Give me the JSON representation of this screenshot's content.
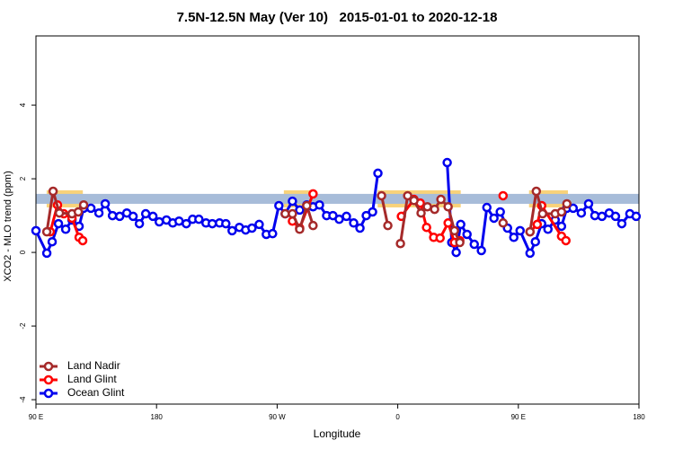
{
  "chart_data": {
    "type": "line",
    "title": "7.5N-12.5N May (Ver 10)   2015-01-01 to 2020-12-18",
    "x_label": "Longitude",
    "y_label": "XCO2 - MLO trend (ppm)",
    "xlim": [
      90,
      540
    ],
    "ylim": [
      -4.12,
      5.88
    ],
    "xticks": [
      {
        "value": 90,
        "label": "90 E"
      },
      {
        "value": 180,
        "label": "180"
      },
      {
        "value": 270,
        "label": "90 W"
      },
      {
        "value": 360,
        "label": "0"
      },
      {
        "value": 450,
        "label": "90 E"
      },
      {
        "value": 540,
        "label": "180"
      }
    ],
    "yticks": [
      -4,
      -2,
      0,
      2,
      4
    ],
    "band": {
      "ylim": [
        1.32,
        1.59
      ],
      "color": "#a7bcd9"
    },
    "highlights": {
      "color": "#f8d27a",
      "x": [
        [
          98,
          125
        ],
        [
          275,
          297
        ],
        [
          345,
          407
        ],
        [
          458,
          487
        ]
      ]
    },
    "legend": "bottom-left",
    "series": [
      {
        "name": "Land Nadir",
        "color": "#a52a2a",
        "x": [
          98.1,
          102.8,
          107.5,
          116.9,
          121.6,
          125.6,
          null,
          276.0,
          281.4,
          286.8,
          292.1,
          296.8,
          null,
          347.9,
          352.6,
          null,
          362.0,
          367.4,
          372.1,
          377.4,
          382.1,
          387.5,
          392.2,
          397.6,
          402.3,
          406.3,
          null,
          438.6,
          null,
          458.7,
          463.4,
          468.1,
          477.5,
          482.2,
          486.2
        ],
        "values": [
          0.56,
          1.66,
          1.07,
          1.05,
          1.1,
          1.29,
          null,
          1.05,
          1.05,
          0.63,
          1.27,
          0.73,
          null,
          1.54,
          0.73,
          null,
          0.24,
          1.54,
          1.41,
          1.07,
          1.24,
          1.17,
          1.44,
          1.24,
          0.59,
          0.27,
          null,
          0.8,
          null,
          0.56,
          1.66,
          1.05,
          1.05,
          1.1,
          1.32
        ]
      },
      {
        "name": "Land Glint",
        "color": "#ff0000",
        "x": [
          100.7,
          106.1,
          110.8,
          116.9,
          122.2,
          124.9,
          null,
          281.4,
          286.8,
          296.8,
          null,
          362.7,
          372.1,
          376.8,
          381.5,
          386.8,
          391.6,
          397.6,
          402.3,
          406.3,
          null,
          438.6,
          null,
          458.7,
          464.1,
          467.4,
          482.2,
          485.5
        ],
        "values": [
          0.56,
          1.29,
          1.05,
          0.93,
          0.41,
          0.32,
          null,
          0.85,
          0.66,
          1.59,
          null,
          0.98,
          1.44,
          1.34,
          0.68,
          0.41,
          0.39,
          0.8,
          0.27,
          0.32,
          null,
          1.54,
          null,
          0.56,
          0.76,
          1.27,
          0.44,
          0.32
        ]
      },
      {
        "name": "Ocean Glint",
        "color": "#0000ee",
        "x": [
          90,
          98.1,
          102.1,
          106.8,
          112.2,
          116.9,
          122.2,
          125.6,
          131.0,
          137.0,
          141.7,
          147.1,
          152.5,
          157.8,
          162.5,
          167.2,
          171.9,
          177.3,
          182.0,
          187.4,
          192.1,
          196.8,
          202.2,
          206.9,
          211.6,
          216.9,
          221.6,
          227.0,
          231.7,
          236.4,
          241.8,
          246.5,
          251.2,
          256.6,
          261.9,
          266.6,
          271.3,
          276.0,
          281.4,
          286.8,
          292.1,
          296.8,
          301.6,
          306.9,
          311.6,
          316.3,
          321.7,
          327.1,
          331.8,
          336.5,
          341.2,
          345.2,
          null,
          396.9,
          400.3,
          403.6,
          407.0,
          411.7,
          417.1,
          422.4,
          426.5,
          431.8,
          436.5,
          441.9,
          446.6,
          451.3,
          458.7,
          462.7,
          467.4,
          472.1,
          477.5,
          482.2,
          486.2,
          490.9,
          497.0,
          502.4,
          507.1,
          512.4,
          517.8,
          522.5,
          527.2,
          533.2,
          537.9
        ],
        "values": [
          0.59,
          -0.02,
          0.29,
          0.78,
          0.63,
          0.88,
          0.71,
          1.2,
          1.2,
          1.07,
          1.32,
          1.0,
          0.98,
          1.07,
          0.98,
          0.78,
          1.05,
          0.98,
          0.83,
          0.88,
          0.8,
          0.85,
          0.78,
          0.9,
          0.9,
          0.8,
          0.78,
          0.8,
          0.78,
          0.59,
          0.68,
          0.61,
          0.66,
          0.76,
          0.49,
          0.51,
          1.27,
          1.05,
          1.39,
          1.15,
          1.29,
          1.24,
          1.29,
          1.0,
          1.0,
          0.9,
          0.98,
          0.8,
          0.66,
          1.0,
          1.1,
          2.15,
          null,
          2.44,
          0.27,
          0.0,
          0.76,
          0.49,
          0.22,
          0.05,
          1.22,
          0.93,
          1.1,
          0.66,
          0.41,
          0.59,
          -0.02,
          0.29,
          0.78,
          0.63,
          0.88,
          0.71,
          1.2,
          1.2,
          1.07,
          1.32,
          1.0,
          0.98,
          1.07,
          0.98,
          0.78,
          1.05,
          0.98
        ]
      }
    ]
  }
}
